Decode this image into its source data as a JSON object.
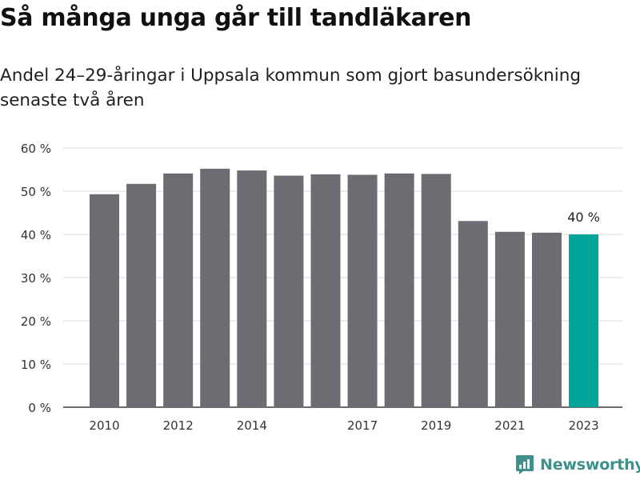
{
  "title": "Så många unga går till tandläkaren",
  "subtitle": "Andel 24–29-åringar i Uppsala kommun som gjort basundersökning senaste två åren",
  "brand": {
    "name": "Newsworthy",
    "icon": "newsworthy-logo-icon",
    "color": "#3f8f8a"
  },
  "colors": {
    "bar": "#6d6c73",
    "highlight": "#00a59a",
    "grid": "#d9d9d9"
  },
  "chart_data": {
    "type": "bar",
    "categories": [
      "2010",
      "2011",
      "2012",
      "2013",
      "2014",
      "2015",
      "2016",
      "2017",
      "2018",
      "2019",
      "2020",
      "2021",
      "2022",
      "2023"
    ],
    "values": [
      49.3,
      51.7,
      54.1,
      55.2,
      54.8,
      53.6,
      53.9,
      53.8,
      54.1,
      54.0,
      43.1,
      40.6,
      40.4,
      40.0
    ],
    "x_tick_labels": [
      "2010",
      "2012",
      "2014",
      "2017",
      "2019",
      "2021",
      "2023"
    ],
    "y_ticks": [
      0,
      10,
      20,
      30,
      40,
      50,
      60
    ],
    "y_tick_labels": [
      "0 %",
      "10 %",
      "20 %",
      "30 %",
      "40 %",
      "50 %",
      "60 %"
    ],
    "ylim": [
      0,
      60
    ],
    "highlight_category": "2023",
    "annotation": "40 %",
    "xlabel": "",
    "ylabel": "",
    "grid": true
  }
}
